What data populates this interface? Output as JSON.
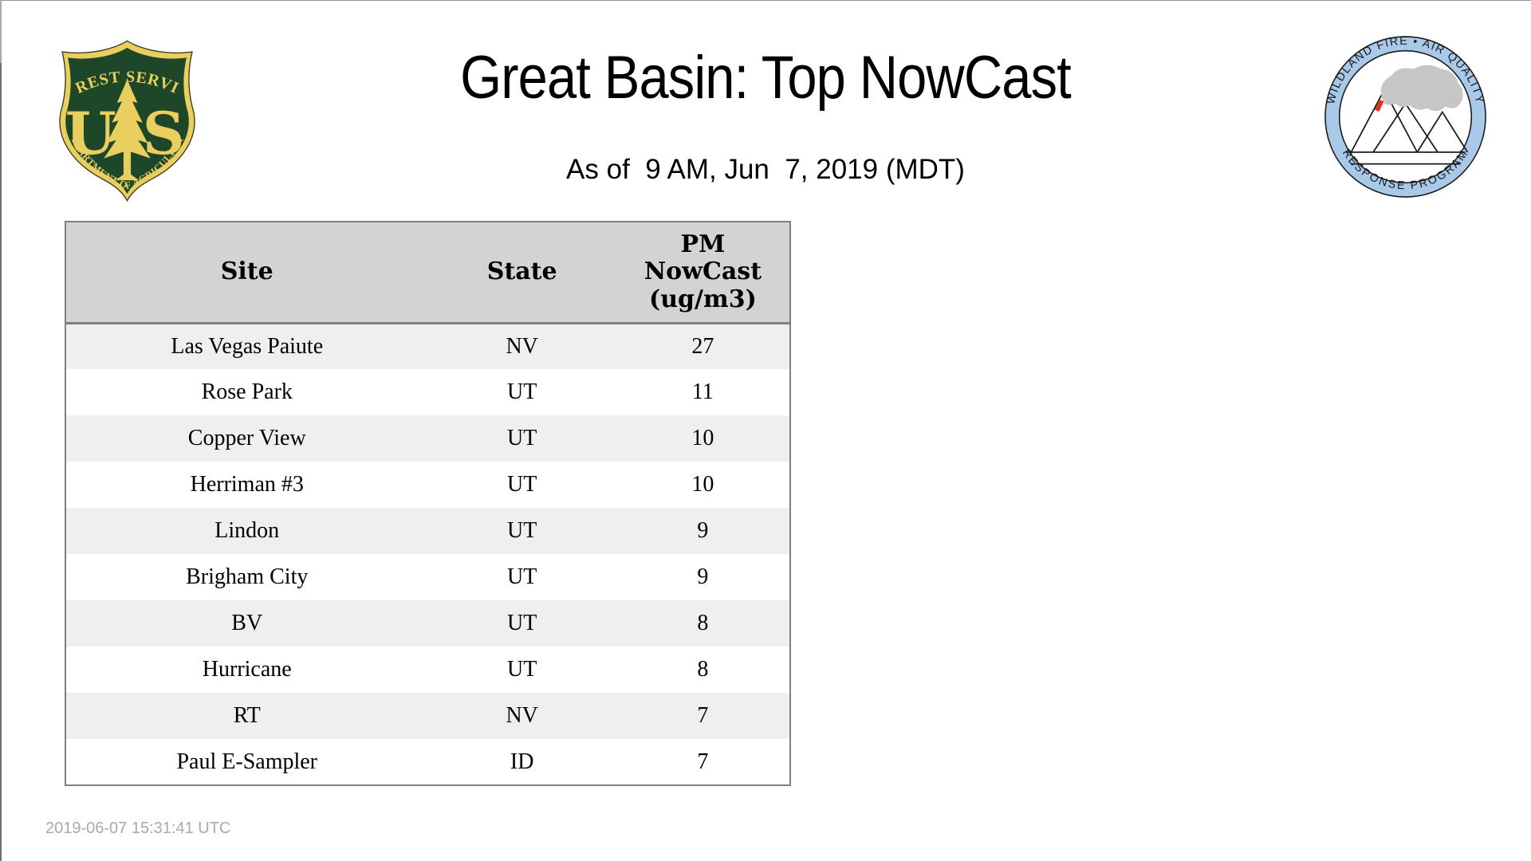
{
  "page": {
    "footer_timestamp": "2019-06-07 15:31:41 UTC"
  },
  "chart_data": {
    "type": "table",
    "title": "Great Basin: Top NowCast",
    "subtitle": "As of  9 AM, Jun  7, 2019 (MDT)",
    "columns": [
      "Site",
      "State",
      "PM NowCast (ug/m3)"
    ],
    "rows": [
      [
        "Las Vegas Paiute",
        "NV",
        27
      ],
      [
        "Rose Park",
        "UT",
        11
      ],
      [
        "Copper View",
        "UT",
        10
      ],
      [
        "Herriman #3",
        "UT",
        10
      ],
      [
        "Lindon",
        "UT",
        9
      ],
      [
        "Brigham City",
        "UT",
        9
      ],
      [
        "BV",
        "UT",
        8
      ],
      [
        "Hurricane",
        "UT",
        8
      ],
      [
        "RT",
        "NV",
        7
      ],
      [
        "Paul E-Sampler",
        "ID",
        7
      ]
    ],
    "layout": {
      "striped_rows": true,
      "header_bg": "#d3d3d3",
      "row_alt_bg": "#efefef",
      "table_border": "#7f7f7f"
    }
  },
  "logos": {
    "usfs": {
      "top_text": "FOREST SERVICE",
      "bottom_text": "DEPARTMENT OF AGRICULTURE",
      "monogram": [
        "U",
        "S"
      ],
      "colors": {
        "green": "#1e4729",
        "gold": "#eace5e"
      }
    },
    "wfaqrp": {
      "top_text": "WILDLAND FIRE • AIR QUALITY",
      "bottom_text": "RESPONSE PROGRAM",
      "colors": {
        "ring_blue": "#a9c9e9",
        "smoke_gray": "#c6c6c6",
        "flame_red": "#dd3327",
        "line": "#1a1a1a"
      }
    }
  }
}
